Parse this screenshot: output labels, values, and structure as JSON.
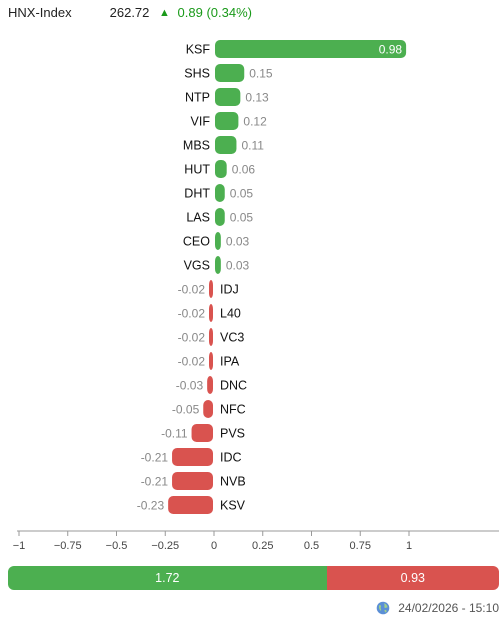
{
  "header": {
    "index_name": "HNX-Index",
    "index_value": "262.72",
    "change_arrow": "▲",
    "change_text": "0.89 (0.34%)",
    "color_up": "#1a9a1a"
  },
  "chart_data": {
    "type": "bar",
    "orientation": "horizontal",
    "categories": [
      "KSF",
      "SHS",
      "NTP",
      "VIF",
      "MBS",
      "HUT",
      "DHT",
      "LAS",
      "CEO",
      "VGS",
      "IDJ",
      "L40",
      "VC3",
      "IPA",
      "DNC",
      "NFC",
      "PVS",
      "IDC",
      "NVB",
      "KSV"
    ],
    "values": [
      0.98,
      0.15,
      0.13,
      0.12,
      0.11,
      0.06,
      0.05,
      0.05,
      0.03,
      0.03,
      -0.02,
      -0.02,
      -0.02,
      -0.02,
      -0.03,
      -0.05,
      -0.11,
      -0.21,
      -0.21,
      -0.23
    ],
    "value_labels": [
      "0.98",
      "0.15",
      "0.13",
      "0.12",
      "0.11",
      "0.06",
      "0.05",
      "0.05",
      "0.03",
      "0.03",
      "-0.02",
      "-0.02",
      "-0.02",
      "-0.02",
      "-0.03",
      "-0.05",
      "-0.11",
      "-0.21",
      "-0.21",
      "-0.23"
    ],
    "xlim": [
      -1,
      1
    ],
    "xticks": [
      -1,
      -0.75,
      -0.5,
      -0.25,
      0,
      0.25,
      0.5,
      0.75,
      1
    ],
    "xtick_labels": [
      "−1",
      "−0.75",
      "−0.5",
      "−0.25",
      "0",
      "0.25",
      "0.5",
      "0.75",
      "1"
    ],
    "colors": {
      "positive": "#4caf50",
      "negative": "#d9534f"
    },
    "grid": false
  },
  "breadth": {
    "up_value": "1.72",
    "down_value": "0.93",
    "up_color": "#4caf50",
    "down_color": "#d9534f"
  },
  "footer": {
    "icon": "globe-icon",
    "timestamp": "24/02/2026 - 15:10"
  }
}
